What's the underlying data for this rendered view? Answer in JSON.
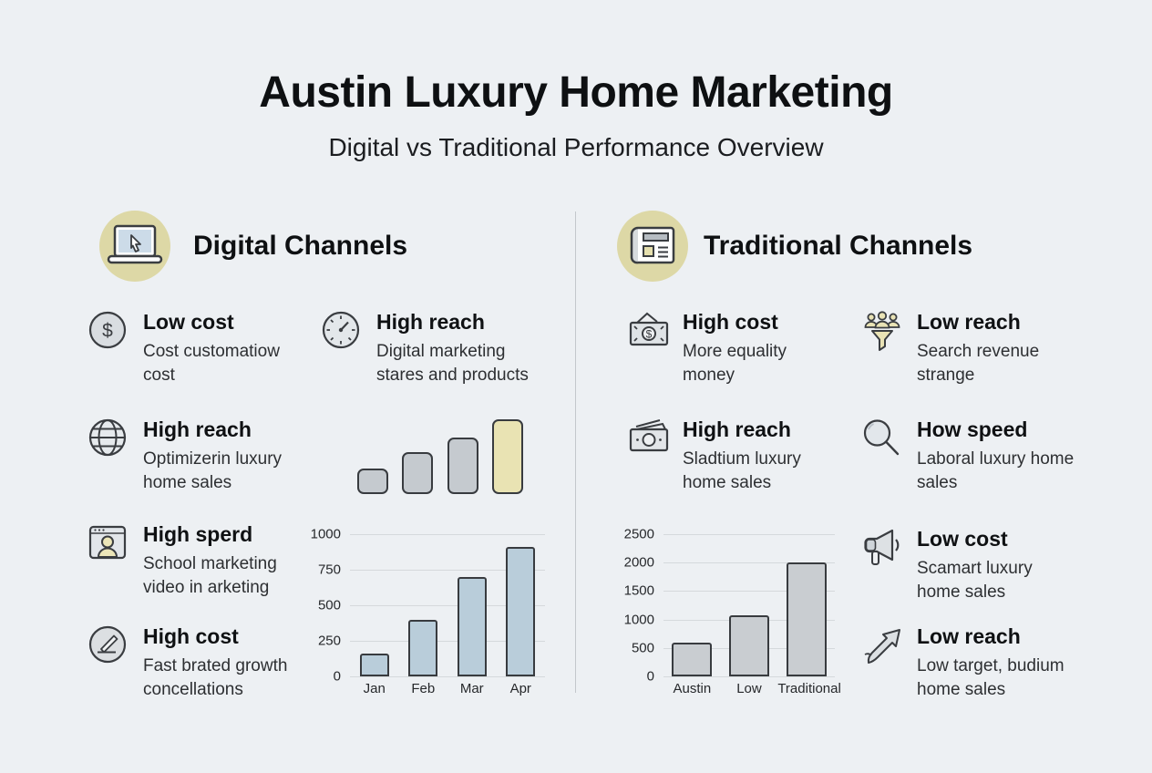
{
  "title": "Austin Luxury Home Marketing",
  "subtitle": "Digital vs Traditional Performance Overview",
  "colors": {
    "background": "#edf0f3",
    "badge_accent": "#ddd8a6",
    "highlight_khaki": "#e9e3b3",
    "digital_bar": "#b9cdda",
    "traditional_bar": "#c9cdd1",
    "bar_outline": "#383b3f",
    "divider": "#c3c7cb"
  },
  "sections": [
    {
      "id": "digital",
      "title": "Digital Channels",
      "icon": "laptop-cursor-icon",
      "features": [
        {
          "icon": "dollar-circle-icon",
          "title": "Low cost",
          "desc": "Cost customatiow cost"
        },
        {
          "icon": "globe-icon",
          "title": "High reach",
          "desc": "Optimizerin luxury home sales"
        },
        {
          "icon": "video-call-icon",
          "title": "High sperd",
          "desc": "School marketing video in arketing"
        },
        {
          "icon": "edit-circle-icon",
          "title": "High cost",
          "desc": "Fast brated growth concellations"
        },
        {
          "icon": "gauge-icon",
          "title": "High reach",
          "desc": "Digital marketing stares and products"
        }
      ]
    },
    {
      "id": "traditional",
      "title": "Traditional Channels",
      "icon": "newspaper-icon",
      "features": [
        {
          "icon": "money-bill-icon",
          "title": "High cost",
          "desc": "More equality money"
        },
        {
          "icon": "banknotes-icon",
          "title": "High reach",
          "desc": "Sladtium luxury home sales"
        },
        {
          "icon": "people-funnel-icon",
          "title": "Low reach",
          "desc": "Search revenue strange"
        },
        {
          "icon": "magnifier-icon",
          "title": "How speed",
          "desc": "Laboral luxury home sales"
        },
        {
          "icon": "megaphone-icon",
          "title": "Low cost",
          "desc": "Scamart luxury home sales"
        },
        {
          "icon": "arrow-up-right-icon",
          "title": "Low reach",
          "desc": "Low target, budium home sales"
        }
      ]
    }
  ],
  "chart_data": [
    {
      "type": "bar",
      "name": "digital-trend-mini",
      "categories": [
        "",
        "",
        "",
        ""
      ],
      "values": [
        31,
        51,
        69,
        91
      ],
      "ylim": [
        0,
        100
      ],
      "axes": false,
      "grid": false,
      "bar_ratio": 0.68,
      "bar_colors": [
        "#c5cacf",
        "#c5cacf",
        "#c5cacf",
        "#e9e3b3"
      ],
      "bar_border": "#383b3f",
      "note": "decorative ascending bars, last bar highlighted"
    },
    {
      "type": "bar",
      "name": "digital-monthly-performance",
      "categories": [
        "Jan",
        "Feb",
        "Mar",
        "Apr"
      ],
      "values": [
        160,
        400,
        700,
        910
      ],
      "ylim": [
        0,
        1000
      ],
      "yticks": [
        0,
        250,
        500,
        750,
        1000
      ],
      "axes": true,
      "grid": true,
      "bar_ratio": 0.6,
      "bar_color": "#b9cdda",
      "bar_border": "#383b3f",
      "legend": "none",
      "xlabel": "",
      "ylabel": ""
    },
    {
      "type": "bar",
      "name": "traditional-comparison",
      "categories": [
        "Austin",
        "Low",
        "Traditional"
      ],
      "values": [
        600,
        1070,
        2000
      ],
      "ylim": [
        0,
        2500
      ],
      "yticks": [
        0,
        500,
        1000,
        1500,
        2000,
        2500
      ],
      "axes": true,
      "grid": true,
      "bar_ratio": 0.7,
      "bar_color": "#c9cdd1",
      "bar_border": "#383b3f",
      "legend": "none",
      "xlabel": "",
      "ylabel": ""
    }
  ]
}
